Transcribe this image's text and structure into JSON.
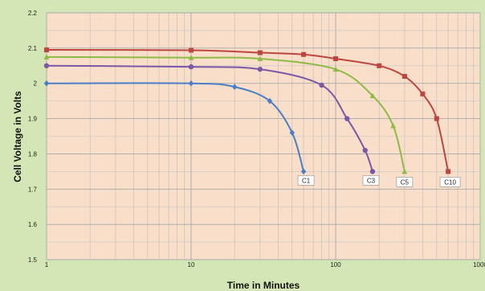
{
  "chart_data": {
    "type": "line",
    "xlabel": "Time in Minutes",
    "ylabel": "Cell Voltage in Volts",
    "xscale": "log",
    "xlim": [
      1,
      1000
    ],
    "ylim": [
      1.5,
      2.2
    ],
    "grid": true,
    "x_ticks": [
      "1",
      "10",
      "100",
      "1000"
    ],
    "y_ticks": [
      "1.5",
      "1.6",
      "1.7",
      "1.8",
      "1.9",
      "2",
      "2.1",
      "2.2"
    ],
    "series": [
      {
        "name": "C1",
        "color": "#4a7fc8",
        "marker": "diamond",
        "x": [
          1,
          10,
          20,
          35,
          50,
          60
        ],
        "y": [
          2.0,
          2.0,
          1.99,
          1.95,
          1.86,
          1.75
        ]
      },
      {
        "name": "C3",
        "color": "#7a58a6",
        "marker": "circle",
        "x": [
          1,
          10,
          30,
          80,
          120,
          160,
          180
        ],
        "y": [
          2.05,
          2.047,
          2.04,
          1.995,
          1.9,
          1.81,
          1.75
        ]
      },
      {
        "name": "C5",
        "color": "#8ebb45",
        "marker": "triangle",
        "x": [
          1,
          10,
          30,
          100,
          180,
          250,
          300
        ],
        "y": [
          2.075,
          2.073,
          2.07,
          2.04,
          1.965,
          1.88,
          1.75
        ]
      },
      {
        "name": "C10",
        "color": "#bd4640",
        "marker": "square",
        "x": [
          1,
          10,
          30,
          60,
          100,
          200,
          300,
          400,
          500,
          600
        ],
        "y": [
          2.095,
          2.094,
          2.087,
          2.082,
          2.07,
          2.05,
          2.02,
          1.97,
          1.9,
          1.75
        ]
      }
    ]
  }
}
